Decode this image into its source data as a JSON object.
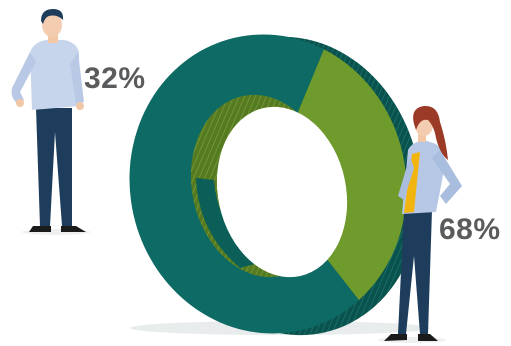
{
  "chart_data": {
    "type": "pie",
    "style": "3d-donut",
    "title": "",
    "slices": [
      {
        "label": "32%",
        "value": 32,
        "color": "#6f9a2c"
      },
      {
        "label": "68%",
        "value": 68,
        "color": "#0e6a64"
      }
    ],
    "legend": "none",
    "grid": false
  },
  "figures": [
    {
      "name": "man",
      "shirt_color": "#c7d5ec",
      "pants_color": "#1e3d5c"
    },
    {
      "name": "woman",
      "shirt_color": "#b7c8e6",
      "pants_color": "#1e3d5c",
      "accent_color": "#f2b50f"
    }
  ],
  "colors": {
    "green_slice": "#6f9a2c",
    "teal_slice": "#0e6a64",
    "label_text": "#5a5b5d"
  }
}
